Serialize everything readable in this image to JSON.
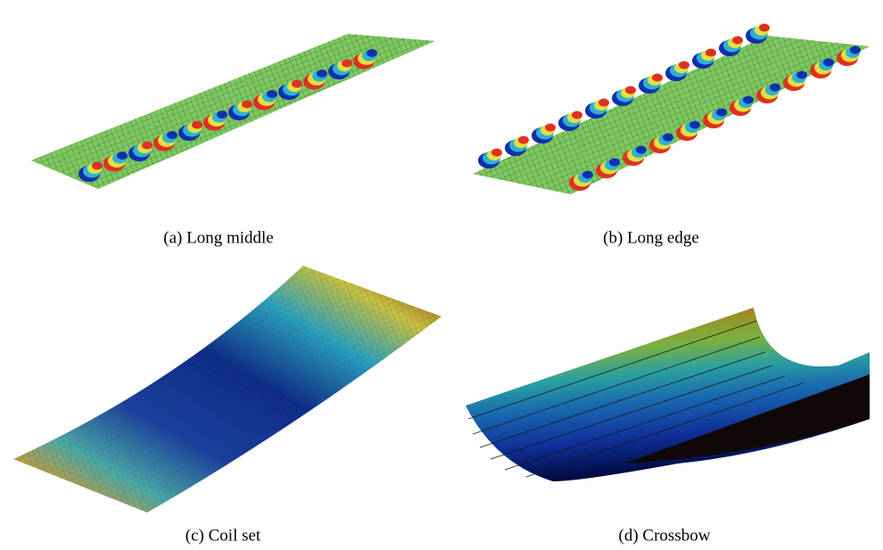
{
  "figure": {
    "captions": [
      "(a) Long middle",
      "(b) Long edge",
      "(c) Coil set",
      "(d) Crossbow"
    ]
  }
}
